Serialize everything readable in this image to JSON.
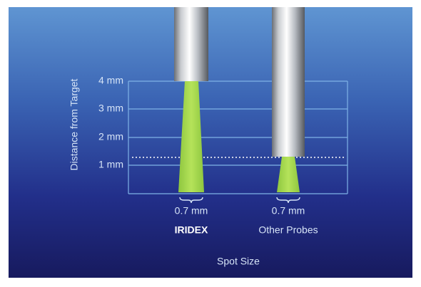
{
  "axis_title": "Distance from Target",
  "y_labels": [
    "4 mm",
    "3 mm",
    "2 mm",
    "1 mm"
  ],
  "probes": [
    {
      "spot_size": "0.7 mm",
      "name": "IRIDEX"
    },
    {
      "spot_size": "0.7 mm",
      "name": "Other Probes"
    }
  ],
  "x_title": "Spot Size"
}
